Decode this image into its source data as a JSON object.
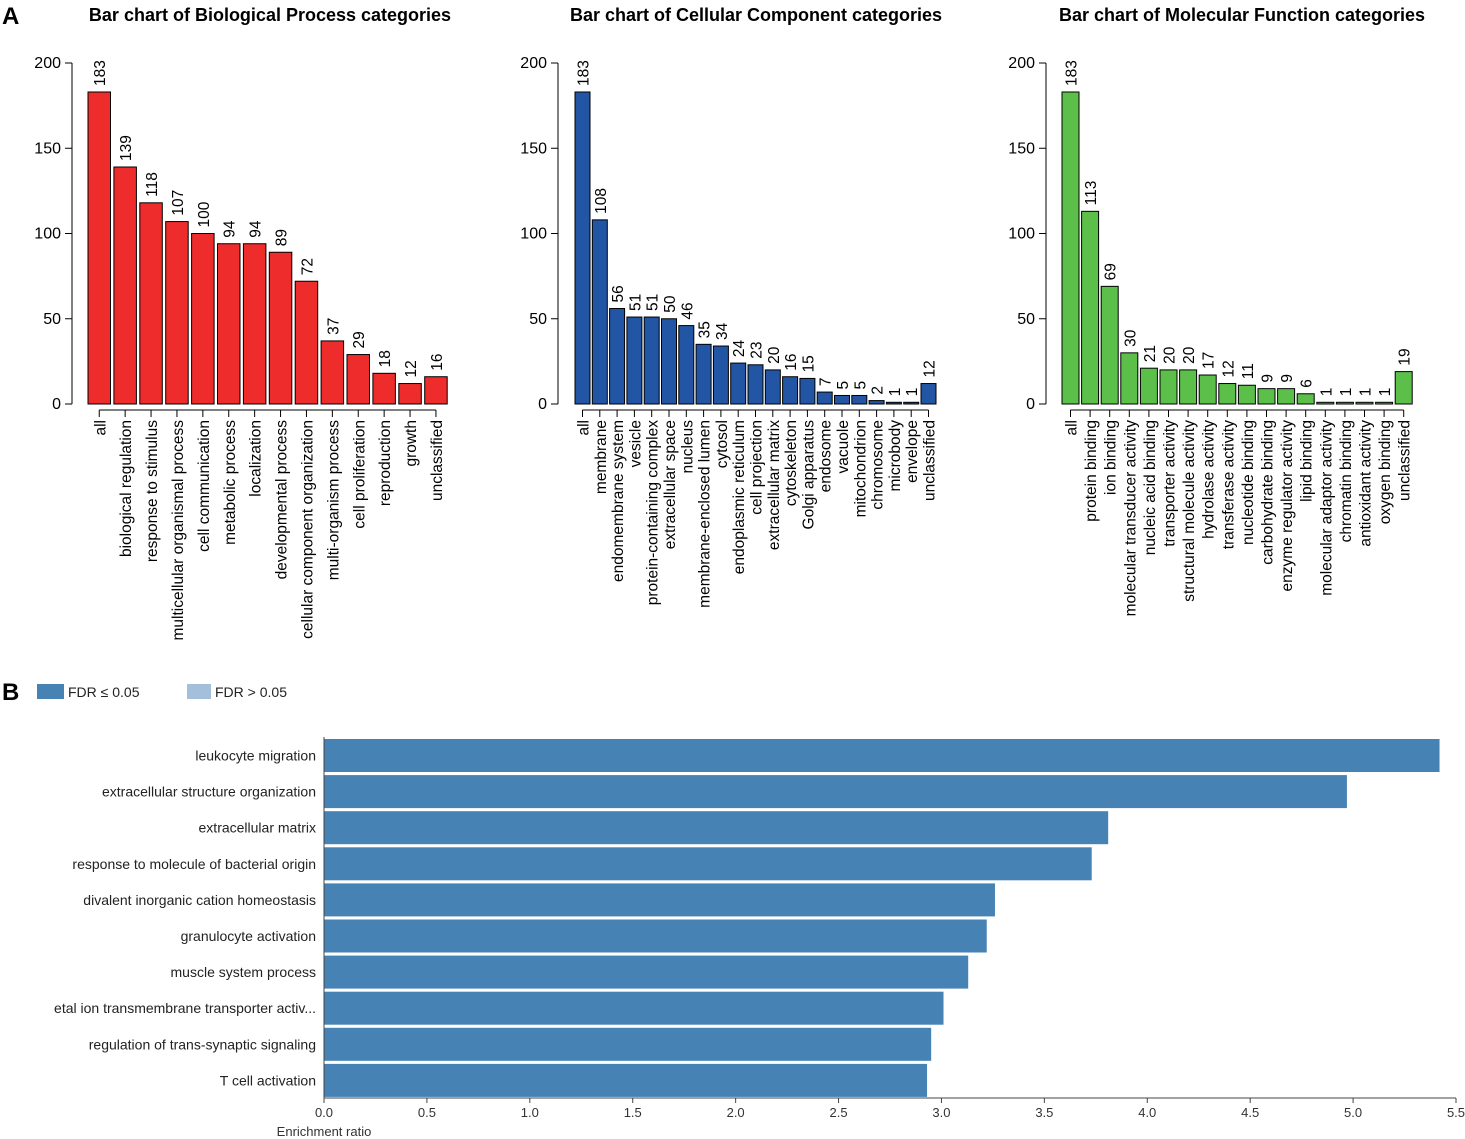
{
  "panels": {
    "a_label": "A",
    "b_label": "B"
  },
  "chart_data": [
    {
      "type": "bar",
      "title": "Bar chart of Biological Process categories",
      "color": "#ee2c2c",
      "ylim": [
        0,
        200
      ],
      "yticks": [
        0,
        50,
        100,
        150,
        200
      ],
      "categories": [
        "all",
        "biological regulation",
        "response to stimulus",
        "multicellular organismal process",
        "cell communication",
        "metabolic process",
        "localization",
        "developmental process",
        "cellular component organization",
        "multi-organism process",
        "cell proliferation",
        "reproduction",
        "growth",
        "unclassified"
      ],
      "values": [
        183,
        139,
        118,
        107,
        100,
        94,
        94,
        89,
        72,
        37,
        29,
        18,
        12,
        16
      ]
    },
    {
      "type": "bar",
      "title": "Bar chart of Cellular Component categories",
      "color": "#2255a4",
      "ylim": [
        0,
        200
      ],
      "yticks": [
        0,
        50,
        100,
        150,
        200
      ],
      "categories": [
        "all",
        "membrane",
        "endomembrane system",
        "vesicle",
        "protein-containing complex",
        "extracellular space",
        "nucleus",
        "membrane-enclosed lumen",
        "cytosol",
        "endoplasmic reticulum",
        "cell projection",
        "extracellular matrix",
        "cytoskeleton",
        "Golgi apparatus",
        "endosome",
        "vacuole",
        "mitochondrion",
        "chromosome",
        "microbody",
        "envelope",
        "unclassified"
      ],
      "values": [
        183,
        108,
        56,
        51,
        51,
        50,
        46,
        35,
        34,
        24,
        23,
        20,
        16,
        15,
        7,
        5,
        5,
        2,
        1,
        1,
        12
      ]
    },
    {
      "type": "bar",
      "title": "Bar chart of Molecular Function categories",
      "color": "#5cbf4a",
      "ylim": [
        0,
        200
      ],
      "yticks": [
        0,
        50,
        100,
        150,
        200
      ],
      "categories": [
        "all",
        "protein binding",
        "ion binding",
        "molecular transducer activity",
        "nucleic acid binding",
        "transporter activity",
        "structural molecule activity",
        "hydrolase activity",
        "transferase activity",
        "nucleotide binding",
        "carbohydrate binding",
        "enzyme regulator activity",
        "lipid binding",
        "molecular adaptor activity",
        "chromatin binding",
        "antioxidant activity",
        "oxygen binding",
        "unclassified"
      ],
      "values": [
        183,
        113,
        69,
        30,
        21,
        20,
        20,
        17,
        12,
        11,
        9,
        9,
        6,
        1,
        1,
        1,
        1,
        19
      ]
    },
    {
      "type": "bar",
      "orientation": "horizontal",
      "xlabel": "Enrichment ratio",
      "xlim": [
        0,
        5.5
      ],
      "xticks": [
        "0.0",
        "0.5",
        "1.0",
        "1.5",
        "2.0",
        "2.5",
        "3.0",
        "3.5",
        "4.0",
        "4.5",
        "5.0",
        "5.5"
      ],
      "legend": [
        {
          "label": "FDR ≤ 0.05",
          "color": "#4682b4"
        },
        {
          "label": "FDR > 0.05",
          "color": "#a4bfdc"
        }
      ],
      "bar_color": "#4682b4",
      "categories": [
        "leukocyte migration",
        "extracellular structure organization",
        "extracellular matrix",
        "response to molecule of bacterial origin",
        "divalent inorganic cation homeostasis",
        "granulocyte activation",
        "muscle system process",
        "etal ion transmembrane transporter activ...",
        "regulation of trans-synaptic signaling",
        "T cell activation"
      ],
      "values": [
        5.42,
        4.97,
        3.81,
        3.73,
        3.26,
        3.22,
        3.13,
        3.01,
        2.95,
        2.93
      ]
    }
  ]
}
